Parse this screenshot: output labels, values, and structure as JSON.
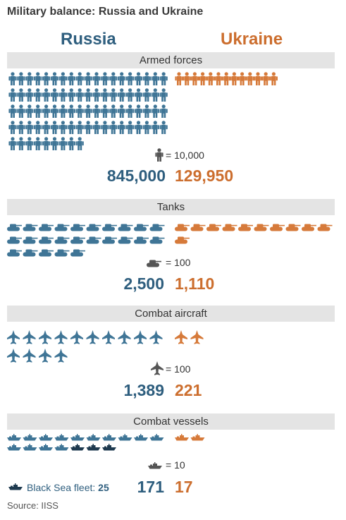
{
  "title": "Military balance: Russia and Ukraine",
  "headers": {
    "russia": "Russia",
    "ukraine": "Ukraine"
  },
  "colors": {
    "russia": "#3f7596",
    "ukraine": "#d67a3a",
    "legend": "#555555",
    "black_sea": "#1e3a4f"
  },
  "sections": {
    "armed_forces": {
      "label": "Armed forces",
      "legend": "= 10,000",
      "russia_value": "845,000",
      "ukraine_value": "129,950"
    },
    "tanks": {
      "label": "Tanks",
      "legend": "= 100",
      "russia_value": "2,500",
      "ukraine_value": "1,110"
    },
    "aircraft": {
      "label": "Combat aircraft",
      "legend": "= 100",
      "russia_value": "1,389",
      "ukraine_value": "221"
    },
    "vessels": {
      "label": "Combat vessels",
      "legend": "= 10",
      "russia_value": "171",
      "ukraine_value": "17"
    }
  },
  "black_sea_fleet": {
    "label": "Black Sea fleet:",
    "value": "25"
  },
  "source": "Source: IISS",
  "chart_data": {
    "type": "pictogram",
    "categories": [
      "Armed forces",
      "Tanks",
      "Combat aircraft",
      "Combat vessels"
    ],
    "series": [
      {
        "name": "Russia",
        "values": [
          845000,
          2500,
          1389,
          171
        ]
      },
      {
        "name": "Ukraine",
        "values": [
          129950,
          1110,
          221,
          17
        ]
      }
    ],
    "units_per_icon": [
      10000,
      100,
      100,
      10
    ],
    "black_sea_fleet": 25
  }
}
